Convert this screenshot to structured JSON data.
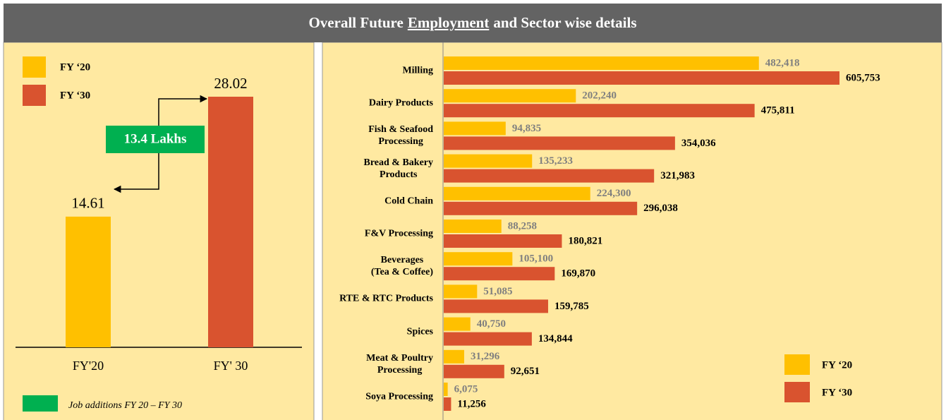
{
  "chart_data": [
    {
      "type": "bar",
      "title": [
        "Overall Future",
        "Employment",
        "and Sector wise details"
      ],
      "legend": [
        "FY ‘20",
        "FY ‘30"
      ],
      "categories": [
        "FY'20",
        "FY' 30"
      ],
      "values": [
        14.61,
        28.02
      ],
      "colors": [
        "#FFC000",
        "#D9532F"
      ],
      "annotation": {
        "text": "13.4 Lakhs",
        "color": "#00B050",
        "legend": "Job additions FY 20 – FY 30"
      }
    },
    {
      "type": "hbar",
      "categories": [
        "Milling",
        "Dairy Products",
        "Fish & Seafood\nProcessing",
        "Bread & Bakery\nProducts",
        "Cold Chain",
        "F&V Processing",
        "Beverages\n(Tea & Coffee)",
        "RTE & RTC Products",
        "Spices",
        "Meat & Poultry\nProcessing",
        "Soya Processing"
      ],
      "series": [
        {
          "name": "FY ‘20",
          "color": "#FFC000",
          "values": [
            482418,
            202240,
            94835,
            135233,
            224300,
            88258,
            105100,
            51085,
            40750,
            31296,
            6075
          ],
          "value_labels": [
            "482,418",
            "202,240",
            "94,835",
            "135,233",
            "224,300",
            "88,258",
            "105,100",
            "51,085",
            "40,750",
            "31,296",
            "6,075"
          ]
        },
        {
          "name": "FY ‘30",
          "color": "#D9532F",
          "values": [
            605753,
            475811,
            354036,
            321983,
            296038,
            180821,
            169870,
            159785,
            134844,
            92651,
            11256
          ],
          "value_labels": [
            "605,753",
            "475,811",
            "354,036",
            "321,983",
            "296,038",
            "180,821",
            "169,870",
            "159,785",
            "134,844",
            "92,651",
            "11,256"
          ]
        }
      ],
      "legend_position": "lower right"
    }
  ]
}
